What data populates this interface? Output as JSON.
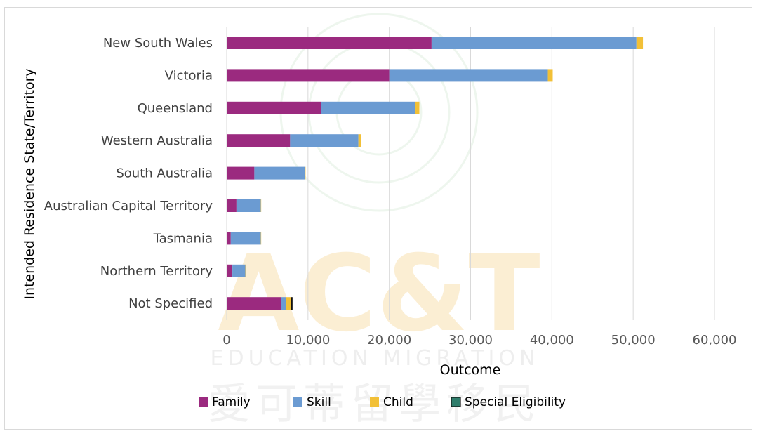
{
  "watermark": {
    "letters": "AC&T",
    "subtitle": "EDUCATION MIGRATION",
    "chinese": "愛可蒂留學移民"
  },
  "colors": {
    "family": "#9b2a7f",
    "skill": "#6b9bd2",
    "child": "#f2c037",
    "special": "#2e7d6b",
    "grid": "#d9d9d9"
  },
  "chart_data": {
    "type": "bar",
    "orientation": "horizontal",
    "stacked": true,
    "categories": [
      "New South Wales",
      "Victoria",
      "Queensland",
      "Western Australia",
      "South Australia",
      "Australian Capital Territory",
      "Tasmania",
      "Northern Territory",
      "Not Specified"
    ],
    "series": [
      {
        "name": "Family",
        "color": "#9b2a7f",
        "values": [
          25200,
          20000,
          11600,
          7800,
          3400,
          1200,
          500,
          700,
          6700
        ]
      },
      {
        "name": "Skill",
        "color": "#6b9bd2",
        "values": [
          25200,
          19500,
          11600,
          8400,
          6200,
          3000,
          3700,
          1600,
          600
        ]
      },
      {
        "name": "Child",
        "color": "#f2c037",
        "values": [
          800,
          600,
          500,
          300,
          100,
          30,
          20,
          20,
          600
        ]
      },
      {
        "name": "Special Eligibility",
        "color": "#2e7d6b",
        "values": [
          0,
          0,
          0,
          0,
          0,
          0,
          0,
          0,
          200
        ]
      }
    ],
    "xlabel": "Outcome",
    "ylabel": "Intended Residence State/Territory",
    "xlim": [
      0,
      60000
    ],
    "xticks": [
      0,
      10000,
      20000,
      30000,
      40000,
      50000,
      60000
    ],
    "xtick_labels": [
      "0",
      "10,000",
      "20,000",
      "30,000",
      "40,000",
      "50,000",
      "60,000"
    ],
    "grid": "vertical",
    "legend": "bottom"
  }
}
